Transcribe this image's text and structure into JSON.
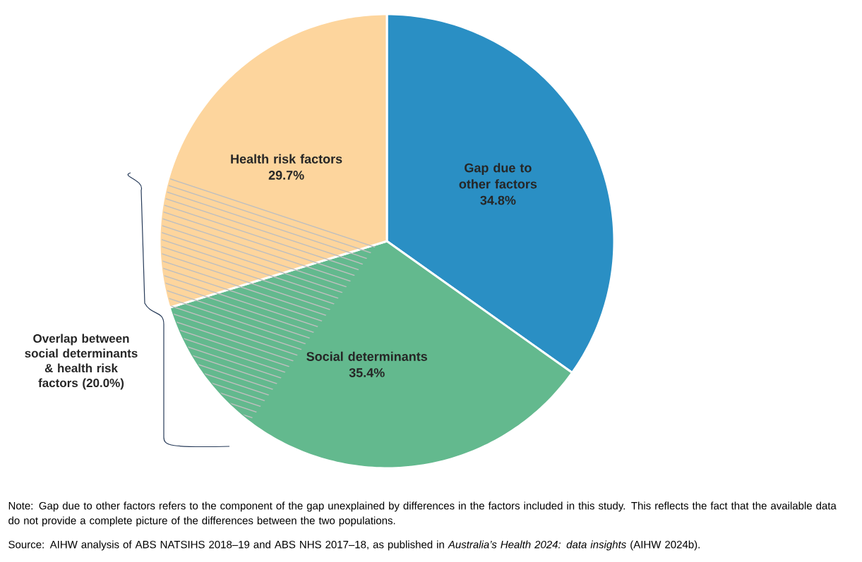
{
  "chart_data": {
    "type": "pie",
    "categories": [
      "Gap due to other factors",
      "Social determinants",
      "Health risk factors"
    ],
    "values": [
      34.8,
      35.4,
      29.7
    ],
    "value_labels": [
      "34.8%",
      "35.4%",
      "29.7%"
    ],
    "colors": [
      "#2a8fc4",
      "#63b98e",
      "#fdd59d"
    ],
    "annotations": [
      "Overlap between social determinants & health risk factors (20.0%)",
      "Note: Gap due to other factors refers to the component of the gap unexplained by differences in the factors included in this study. This reflects the fact that the available data do not provide a complete picture of the differences between the two populations.",
      "Source: AIHW analysis of ABS NATSIHS 2018–19 and ABS NHS 2017–18, as published in *Australia’s Health 2024: data insights* (AIHW 2024b)."
    ]
  }
}
